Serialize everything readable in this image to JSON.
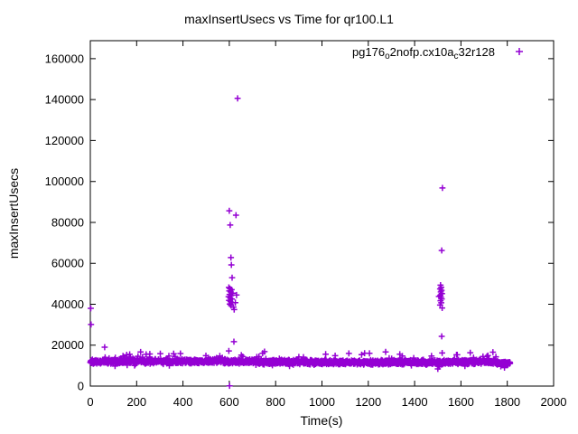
{
  "chart_data": {
    "type": "scatter",
    "title": "maxInsertUsecs vs Time for qr100.L1",
    "xlabel": "Time(s)",
    "ylabel": "maxInsertUsecs",
    "xlim": [
      0,
      2000
    ],
    "ylim": [
      0,
      168800
    ],
    "xticks": [
      0,
      200,
      400,
      600,
      800,
      1000,
      1200,
      1400,
      1600,
      1800,
      2000
    ],
    "yticks": [
      0,
      20000,
      40000,
      60000,
      80000,
      100000,
      120000,
      140000,
      160000
    ],
    "grid": false,
    "legend": {
      "position": "top-right",
      "entries": [
        {
          "label_plain": "pg176o2nofp.cx10ac32r128",
          "label_parts": [
            {
              "text": "pg176"
            },
            {
              "text": "o",
              "sub": true
            },
            {
              "text": "2nofp.cx10a"
            },
            {
              "text": "c",
              "sub": true
            },
            {
              "text": "32r128"
            }
          ],
          "marker": "plus",
          "color": "#9400d3"
        }
      ]
    },
    "style": {
      "marker_shape": "plus",
      "marker_color": "#9400d3",
      "marker_size": 3.4,
      "marker_stroke": 1.5,
      "axis_color": "#000000",
      "background": "#ffffff",
      "tick_length": 6
    },
    "series": [
      {
        "name": "pg176o2nofp.cx10ac32r128",
        "color": "#9400d3",
        "baseline_band": {
          "description": "dense noisy band, one sample per second",
          "x_start": 0,
          "x_end": 1812,
          "step": 1,
          "y_center": 11900,
          "y_jitter": 1550,
          "wave_amp": 300,
          "wave_period": 260,
          "tail_start": 1752,
          "y_center_tail": 11150,
          "tail_jitter": 950,
          "up_spike_chance": 0.035,
          "up_spike_extra": 3800,
          "down_dip_chance": 0.012,
          "y_min": 8300,
          "seed": 1337
        },
        "outliers": [
          [
            2,
            38000
          ],
          [
            3,
            30100
          ],
          [
            62,
            19000
          ],
          [
            601,
            150
          ],
          [
            636,
            140600
          ],
          [
            600,
            85700
          ],
          [
            629,
            83500
          ],
          [
            604,
            78700
          ],
          [
            607,
            62800
          ],
          [
            609,
            59200
          ],
          [
            612,
            53000
          ],
          [
            598,
            48200
          ],
          [
            603,
            47600
          ],
          [
            610,
            47100
          ],
          [
            600,
            46500
          ],
          [
            606,
            46000
          ],
          [
            615,
            45400
          ],
          [
            601,
            44800
          ],
          [
            608,
            44300
          ],
          [
            597,
            43700
          ],
          [
            604,
            43100
          ],
          [
            611,
            42500
          ],
          [
            599,
            41900
          ],
          [
            605,
            41300
          ],
          [
            613,
            40700
          ],
          [
            602,
            40100
          ],
          [
            607,
            39400
          ],
          [
            618,
            38600
          ],
          [
            621,
            37400
          ],
          [
            631,
            44500
          ],
          [
            626,
            40800
          ],
          [
            620,
            21700
          ],
          [
            598,
            17200
          ],
          [
            1520,
            96800
          ],
          [
            1517,
            66300
          ],
          [
            1512,
            49300
          ],
          [
            1515,
            48300
          ],
          [
            1510,
            47500
          ],
          [
            1516,
            46800
          ],
          [
            1513,
            46000
          ],
          [
            1518,
            45200
          ],
          [
            1511,
            44400
          ],
          [
            1514,
            43500
          ],
          [
            1517,
            42600
          ],
          [
            1512,
            41700
          ],
          [
            1515,
            40700
          ],
          [
            1510,
            39600
          ],
          [
            1519,
            38200
          ],
          [
            1505,
            43800
          ],
          [
            1517,
            24300
          ],
          [
            1500,
            8400
          ],
          [
            1275,
            16700
          ],
          [
            1640,
            16300
          ],
          [
            1205,
            16000
          ]
        ]
      }
    ]
  }
}
